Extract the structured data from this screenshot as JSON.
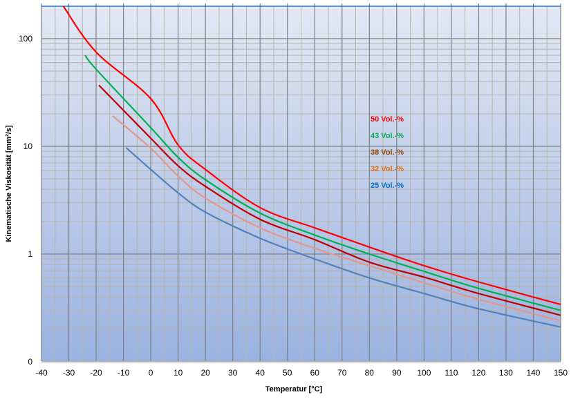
{
  "chart_data": {
    "type": "line",
    "title": "",
    "xlabel": "Temperatur [°C]",
    "ylabel": "Kinematische Viskosität  [mm²/s]",
    "xlim": [
      -40,
      150
    ],
    "ylim": [
      0.1,
      200
    ],
    "yscale": "log",
    "x_ticks": [
      "-40",
      "-30",
      "-20",
      "-10",
      "0",
      "10",
      "20",
      "30",
      "40",
      "50",
      "60",
      "70",
      "80",
      "90",
      "100",
      "110",
      "120",
      "130",
      "140",
      "150"
    ],
    "y_ticks": [
      {
        "value": 100,
        "label": "100"
      },
      {
        "value": 10,
        "label": "10"
      },
      {
        "value": 1,
        "label": "1"
      },
      {
        "value": 0.1,
        "label": "0"
      }
    ],
    "grid": true,
    "legend_position": "center-right",
    "background_colors": [
      "#e2e8f4",
      "#9ab2e0"
    ],
    "series": [
      {
        "name": "50 Vol.-%",
        "color": "#ff0000",
        "label_color": "#ff0000",
        "x": [
          -32,
          -20,
          0,
          10,
          20,
          40,
          60,
          80,
          100,
          120,
          150
        ],
        "y": [
          200,
          75,
          27.7,
          10.3,
          6.1,
          2.7,
          1.75,
          1.16,
          0.78,
          0.55,
          0.34
        ]
      },
      {
        "name": "43 Vol.-%",
        "color": "#00b050",
        "label_color": "#00b050",
        "x": [
          -24,
          -20,
          0,
          10,
          20,
          40,
          60,
          80,
          100,
          120,
          150
        ],
        "y": [
          70,
          52,
          14.9,
          7.9,
          4.9,
          2.4,
          1.5,
          1.0,
          0.69,
          0.48,
          0.3
        ]
      },
      {
        "name": "38 Vol.-%",
        "color": "#c00000",
        "label_color": "#974706",
        "x": [
          -19,
          0,
          10,
          20,
          40,
          60,
          80,
          100,
          120,
          150
        ],
        "y": [
          37,
          11.9,
          6.6,
          4.25,
          2.1,
          1.36,
          0.84,
          0.61,
          0.43,
          0.27
        ]
      },
      {
        "name": "32 Vol.-%",
        "color": "#e6968c",
        "label_color": "#e46c0a",
        "x": [
          -14,
          0,
          10,
          20,
          40,
          60,
          80,
          100,
          120,
          150
        ],
        "y": [
          19.2,
          9.6,
          5.3,
          3.3,
          1.75,
          1.13,
          0.78,
          0.54,
          0.38,
          0.24
        ]
      },
      {
        "name": "25 Vol.-%",
        "color": "#4f81bd",
        "label_color": "#0070c0",
        "x": [
          -9,
          0,
          10,
          20,
          40,
          60,
          80,
          100,
          120,
          150
        ],
        "y": [
          9.7,
          6.1,
          3.7,
          2.45,
          1.4,
          0.9,
          0.6,
          0.43,
          0.31,
          0.21
        ]
      }
    ]
  }
}
